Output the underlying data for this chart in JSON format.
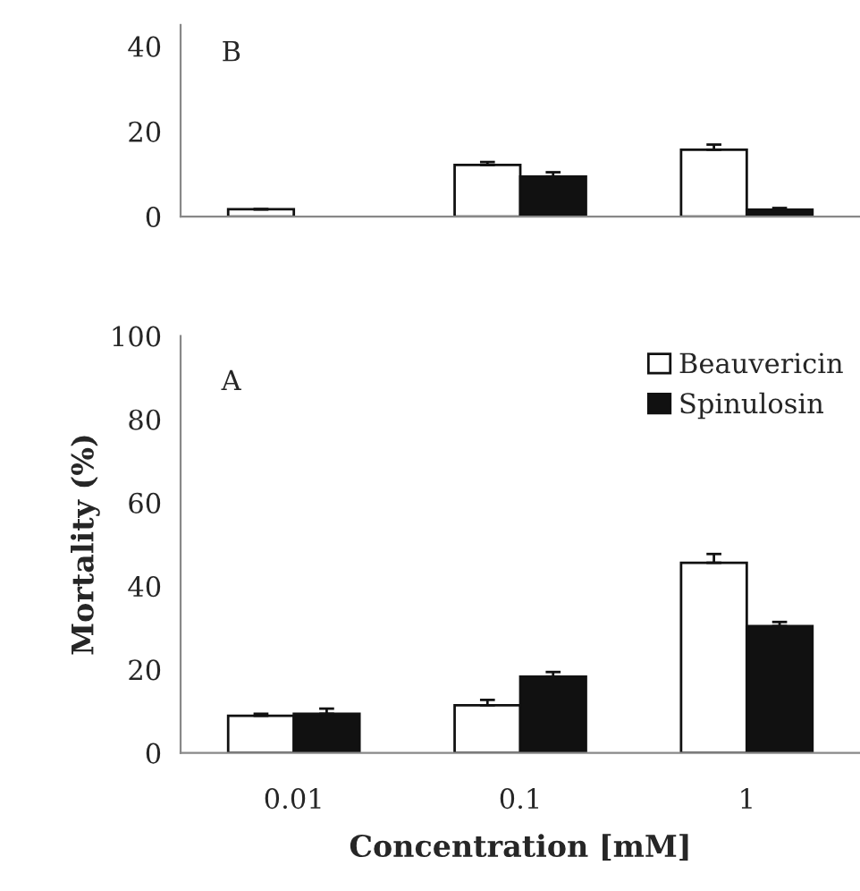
{
  "chart_data": [
    {
      "type": "bar",
      "categories": [
        "0.01",
        "0.1",
        "1"
      ],
      "tick_labels": "y",
      "ylim": [
        0,
        45
      ],
      "yticks": [
        0,
        20,
        40
      ],
      "annotations": [
        "B"
      ],
      "legend": false,
      "series": [
        {
          "color": "#ffffff",
          "values": [
            1.7,
            12.1,
            15.7
          ],
          "errors": [
            null,
            0.7,
            1.2
          ]
        },
        {
          "color": "#111111",
          "values": [
            null,
            9.4,
            1.6
          ],
          "errors": [
            null,
            1.0,
            0.4
          ]
        }
      ]
    },
    {
      "type": "bar",
      "categories": [
        "0.01",
        "0.1",
        "1"
      ],
      "xlabel": "Concentration [mM]",
      "ylabel": "Mortality (%)",
      "ylim": [
        0,
        100
      ],
      "yticks": [
        0,
        20,
        40,
        60,
        80,
        100
      ],
      "annotations": [
        "A"
      ],
      "legend": "top right",
      "series": [
        {
          "name": "Beauvericin",
          "color": "#ffffff",
          "values": [
            8.9,
            11.4,
            45.6
          ],
          "errors": [
            0.5,
            1.3,
            2.1
          ]
        },
        {
          "name": "Spinulosin",
          "color": "#111111",
          "values": [
            9.4,
            18.3,
            30.4
          ],
          "errors": [
            1.2,
            1.1,
            1.0
          ]
        }
      ]
    }
  ]
}
